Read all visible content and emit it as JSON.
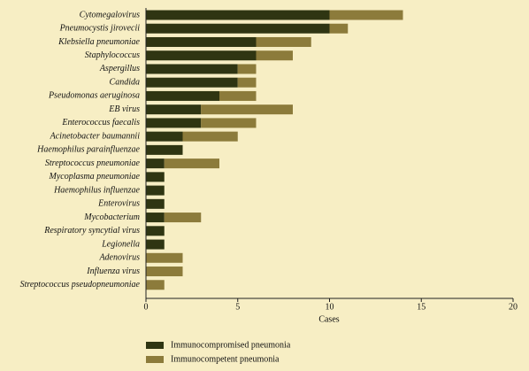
{
  "chart_data": {
    "type": "stacked_barh",
    "xlabel": "Cases",
    "categories": [
      "Cytomegalovirus",
      "Pneumocystis jirovecii",
      "Klebsiella pneumoniae",
      "Staphylococcus",
      "Aspergillus",
      "Candida",
      "Pseudomonas aeruginosa",
      "EB virus",
      "Enterococcus faecalis",
      "Acinetobacter baumannii",
      "Haemophilus parainfluenzae",
      "Streptococcus pneumoniae",
      "Mycoplasma pneumoniae",
      "Haemophilus influenzae",
      "Enterovirus",
      "Mycobacterium",
      "Respiratory syncytial virus",
      "Legionella",
      "Adenovirus",
      "Influenza virus",
      "Streptococcus pseudopneumoniae"
    ],
    "series": [
      {
        "name": "Immunocompromised pneumonia",
        "color": "#2f3512",
        "values": [
          10,
          10,
          6,
          6,
          5,
          5,
          4,
          3,
          3,
          2,
          2,
          1,
          1,
          1,
          1,
          1,
          1,
          1,
          0,
          0,
          0
        ]
      },
      {
        "name": "Immunocompetent pneumonia",
        "color": "#8c7b3b",
        "values": [
          4,
          1,
          3,
          2,
          1,
          1,
          2,
          5,
          3,
          3,
          0,
          3,
          0,
          0,
          0,
          2,
          0,
          0,
          2,
          2,
          1
        ]
      }
    ],
    "xlim": [
      0,
      20
    ],
    "xticks": [
      0,
      5,
      10,
      15,
      20
    ],
    "legend": "bottom-left"
  }
}
